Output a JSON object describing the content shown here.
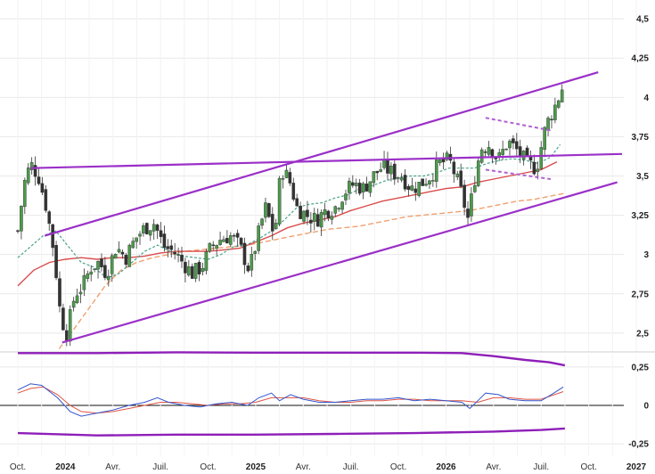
{
  "chart_data": {
    "type": "candlestick",
    "price_axis": {
      "ylim": [
        2.38,
        4.62
      ],
      "ticks": [
        "4,5",
        "4,25",
        "4",
        "3,75",
        "3,5",
        "3,25",
        "3",
        "2,75",
        "2,5"
      ],
      "tick_values": [
        4.5,
        4.25,
        4.0,
        3.75,
        3.5,
        3.25,
        3.0,
        2.75,
        2.5
      ]
    },
    "osc_axis": {
      "ylim": [
        -0.33,
        0.33
      ],
      "ticks": [
        "0,25",
        "0",
        "-0,25"
      ],
      "tick_values": [
        0.25,
        0.0,
        -0.25
      ]
    },
    "x_axis": {
      "labels": [
        "Oct.",
        "2024",
        "Avr.",
        "Juil.",
        "Oct.",
        "2025",
        "Avr.",
        "Juil.",
        "Oct.",
        "2026",
        "Avr.",
        "Juil.",
        "Oct.",
        "2027"
      ],
      "bold": [
        false,
        true,
        false,
        false,
        false,
        true,
        false,
        false,
        false,
        true,
        false,
        false,
        false,
        true
      ],
      "t": [
        0,
        3,
        6,
        9,
        12,
        15,
        18,
        21,
        24,
        27,
        30,
        33,
        36,
        39
      ]
    },
    "anchors": [
      [
        0,
        3.15
      ],
      [
        0.4,
        3.45
      ],
      [
        0.8,
        3.58
      ],
      [
        1.3,
        3.5
      ],
      [
        1.8,
        3.3
      ],
      [
        2.3,
        3.0
      ],
      [
        2.7,
        2.6
      ],
      [
        3.1,
        2.5
      ],
      [
        3.6,
        2.75
      ],
      [
        4.1,
        2.8
      ],
      [
        4.6,
        2.92
      ],
      [
        5.1,
        2.95
      ],
      [
        5.6,
        2.88
      ],
      [
        6.2,
        3.05
      ],
      [
        6.8,
        2.98
      ],
      [
        7.4,
        3.1
      ],
      [
        8.0,
        3.17
      ],
      [
        8.6,
        3.2
      ],
      [
        9.2,
        3.05
      ],
      [
        9.8,
        3.02
      ],
      [
        10.4,
        2.95
      ],
      [
        11.0,
        2.88
      ],
      [
        11.6,
        2.92
      ],
      [
        12.2,
        3.05
      ],
      [
        12.8,
        3.1
      ],
      [
        13.4,
        3.12
      ],
      [
        14.0,
        3.05
      ],
      [
        14.6,
        2.9
      ],
      [
        15.1,
        3.1
      ],
      [
        15.6,
        3.3
      ],
      [
        16.2,
        3.12
      ],
      [
        16.6,
        3.55
      ],
      [
        17.1,
        3.48
      ],
      [
        17.6,
        3.3
      ],
      [
        18.2,
        3.25
      ],
      [
        18.8,
        3.22
      ],
      [
        19.4,
        3.28
      ],
      [
        20.0,
        3.3
      ],
      [
        20.6,
        3.4
      ],
      [
        21.2,
        3.45
      ],
      [
        21.8,
        3.42
      ],
      [
        22.4,
        3.5
      ],
      [
        23.0,
        3.56
      ],
      [
        23.6,
        3.52
      ],
      [
        24.2,
        3.5
      ],
      [
        24.8,
        3.42
      ],
      [
        25.4,
        3.45
      ],
      [
        26.0,
        3.5
      ],
      [
        26.6,
        3.58
      ],
      [
        27.2,
        3.6
      ],
      [
        27.6,
        3.5
      ],
      [
        28.0,
        3.38
      ],
      [
        28.4,
        3.22
      ],
      [
        28.8,
        3.48
      ],
      [
        29.2,
        3.68
      ],
      [
        29.7,
        3.7
      ],
      [
        30.3,
        3.6
      ],
      [
        30.9,
        3.72
      ],
      [
        31.5,
        3.66
      ],
      [
        32.1,
        3.58
      ],
      [
        32.7,
        3.55
      ],
      [
        33.3,
        3.82
      ],
      [
        33.9,
        3.95
      ],
      [
        34.4,
        4.08
      ]
    ],
    "ma_green": [
      [
        0,
        2.98
      ],
      [
        0.8,
        3.05
      ],
      [
        1.6,
        3.12
      ],
      [
        2.4,
        3.15
      ],
      [
        3.2,
        3.05
      ],
      [
        4.0,
        2.95
      ],
      [
        4.8,
        2.92
      ],
      [
        5.6,
        2.85
      ],
      [
        6.4,
        2.88
      ],
      [
        7.2,
        2.95
      ],
      [
        8.0,
        3.02
      ],
      [
        8.8,
        3.06
      ],
      [
        9.6,
        3.02
      ],
      [
        10.4,
        2.99
      ],
      [
        11.2,
        2.98
      ],
      [
        12.0,
        2.97
      ],
      [
        12.8,
        3.0
      ],
      [
        13.6,
        3.05
      ],
      [
        14.4,
        3.06
      ],
      [
        15.2,
        3.1
      ],
      [
        16.0,
        3.15
      ],
      [
        16.8,
        3.22
      ],
      [
        17.6,
        3.3
      ],
      [
        18.4,
        3.32
      ],
      [
        19.2,
        3.33
      ],
      [
        20.0,
        3.36
      ],
      [
        20.8,
        3.38
      ],
      [
        21.6,
        3.42
      ],
      [
        22.4,
        3.44
      ],
      [
        23.2,
        3.47
      ],
      [
        24.0,
        3.49
      ],
      [
        24.8,
        3.5
      ],
      [
        25.6,
        3.5
      ],
      [
        26.4,
        3.52
      ],
      [
        27.2,
        3.55
      ],
      [
        28.0,
        3.55
      ],
      [
        28.8,
        3.55
      ],
      [
        29.6,
        3.58
      ],
      [
        30.4,
        3.6
      ],
      [
        31.2,
        3.61
      ],
      [
        32.0,
        3.6
      ],
      [
        32.8,
        3.58
      ],
      [
        33.6,
        3.62
      ],
      [
        34.2,
        3.7
      ]
    ],
    "ma_red": [
      [
        0,
        2.8
      ],
      [
        1.0,
        2.9
      ],
      [
        2.0,
        2.95
      ],
      [
        3.0,
        2.97
      ],
      [
        4.0,
        2.98
      ],
      [
        5.0,
        2.97
      ],
      [
        6.0,
        2.98
      ],
      [
        7.0,
        2.98
      ],
      [
        8.0,
        2.99
      ],
      [
        9.0,
        3.01
      ],
      [
        10.0,
        3.02
      ],
      [
        11.0,
        3.02
      ],
      [
        12.0,
        3.02
      ],
      [
        13.0,
        3.03
      ],
      [
        14.0,
        3.04
      ],
      [
        15.0,
        3.08
      ],
      [
        16.0,
        3.12
      ],
      [
        17.0,
        3.17
      ],
      [
        18.0,
        3.2
      ],
      [
        19.0,
        3.22
      ],
      [
        20.0,
        3.24
      ],
      [
        21.0,
        3.28
      ],
      [
        22.0,
        3.31
      ],
      [
        23.0,
        3.34
      ],
      [
        24.0,
        3.36
      ],
      [
        25.0,
        3.38
      ],
      [
        26.0,
        3.4
      ],
      [
        27.0,
        3.42
      ],
      [
        28.0,
        3.43
      ],
      [
        29.0,
        3.46
      ],
      [
        30.0,
        3.48
      ],
      [
        31.0,
        3.5
      ],
      [
        32.0,
        3.52
      ],
      [
        33.0,
        3.54
      ],
      [
        34.0,
        3.59
      ]
    ],
    "ma_orange": [
      [
        2.6,
        2.4
      ],
      [
        3.5,
        2.52
      ],
      [
        4.5,
        2.66
      ],
      [
        5.5,
        2.8
      ],
      [
        6.5,
        2.9
      ],
      [
        7.5,
        2.95
      ],
      [
        8.5,
        2.98
      ],
      [
        9.5,
        3.0
      ],
      [
        10.5,
        3.02
      ],
      [
        11.5,
        3.03
      ],
      [
        12.5,
        3.04
      ],
      [
        13.5,
        3.05
      ],
      [
        14.5,
        3.06
      ],
      [
        15.5,
        3.08
      ],
      [
        16.5,
        3.1
      ],
      [
        17.5,
        3.12
      ],
      [
        18.5,
        3.14
      ],
      [
        19.5,
        3.16
      ],
      [
        20.5,
        3.17
      ],
      [
        21.5,
        3.18
      ],
      [
        22.5,
        3.2
      ],
      [
        23.5,
        3.22
      ],
      [
        24.5,
        3.24
      ],
      [
        25.5,
        3.25
      ],
      [
        26.5,
        3.26
      ],
      [
        27.5,
        3.27
      ],
      [
        28.5,
        3.28
      ],
      [
        29.5,
        3.3
      ],
      [
        30.5,
        3.32
      ],
      [
        31.5,
        3.34
      ],
      [
        32.5,
        3.35
      ],
      [
        33.5,
        3.37
      ],
      [
        34.5,
        3.39
      ]
    ],
    "trendlines": [
      {
        "type": "channel-top",
        "p1": [
          1.7,
          3.12
        ],
        "p2": [
          36.6,
          4.16
        ]
      },
      {
        "type": "channel-bottom",
        "p1": [
          2.8,
          2.44
        ],
        "p2": [
          37.8,
          3.46
        ]
      },
      {
        "type": "horizontal",
        "p1": [
          0.8,
          3.55
        ],
        "p2": [
          38.1,
          3.64
        ]
      },
      {
        "type": "flag-top",
        "p1": [
          29.5,
          3.87
        ],
        "p2": [
          33.6,
          3.79
        ],
        "dashed": true
      },
      {
        "type": "flag-bottom",
        "p1": [
          29.5,
          3.54
        ],
        "p2": [
          33.6,
          3.48
        ],
        "dashed": true
      }
    ],
    "volume_line": [
      [
        0,
        0.34
      ],
      [
        5,
        0.34
      ],
      [
        10,
        0.345
      ],
      [
        15,
        0.343
      ],
      [
        20,
        0.343
      ],
      [
        25,
        0.343
      ],
      [
        28,
        0.34
      ],
      [
        30,
        0.32
      ],
      [
        32,
        0.295
      ],
      [
        33.5,
        0.28
      ],
      [
        34.5,
        0.26
      ]
    ],
    "osc_blue": [
      [
        0,
        0.1
      ],
      [
        0.8,
        0.14
      ],
      [
        1.5,
        0.13
      ],
      [
        2.5,
        0.05
      ],
      [
        3.3,
        -0.04
      ],
      [
        4.0,
        -0.07
      ],
      [
        5.0,
        -0.05
      ],
      [
        6.0,
        -0.03
      ],
      [
        7.0,
        0.0
      ],
      [
        8.0,
        0.02
      ],
      [
        8.8,
        0.05
      ],
      [
        9.5,
        0.02
      ],
      [
        10.5,
        0.0
      ],
      [
        11.5,
        -0.01
      ],
      [
        12.5,
        0.01
      ],
      [
        13.5,
        0.02
      ],
      [
        14.5,
        0.0
      ],
      [
        15.2,
        0.05
      ],
      [
        16.0,
        0.08
      ],
      [
        16.5,
        0.03
      ],
      [
        17.2,
        0.07
      ],
      [
        18.0,
        0.04
      ],
      [
        19.0,
        0.02
      ],
      [
        20.0,
        0.02
      ],
      [
        21.0,
        0.03
      ],
      [
        22.0,
        0.04
      ],
      [
        23.0,
        0.04
      ],
      [
        24.0,
        0.05
      ],
      [
        25.0,
        0.03
      ],
      [
        26.0,
        0.04
      ],
      [
        27.0,
        0.03
      ],
      [
        28.0,
        0.02
      ],
      [
        28.5,
        -0.02
      ],
      [
        29.0,
        0.03
      ],
      [
        29.5,
        0.08
      ],
      [
        30.3,
        0.07
      ],
      [
        31.0,
        0.04
      ],
      [
        32.0,
        0.03
      ],
      [
        33.0,
        0.03
      ],
      [
        33.8,
        0.08
      ],
      [
        34.4,
        0.12
      ]
    ],
    "osc_red": [
      [
        0,
        0.08
      ],
      [
        0.8,
        0.11
      ],
      [
        1.6,
        0.12
      ],
      [
        2.5,
        0.07
      ],
      [
        3.3,
        0.0
      ],
      [
        4.0,
        -0.04
      ],
      [
        5.0,
        -0.05
      ],
      [
        6.0,
        -0.04
      ],
      [
        7.0,
        -0.02
      ],
      [
        8.0,
        0.0
      ],
      [
        9.0,
        0.02
      ],
      [
        10.0,
        0.02
      ],
      [
        11.0,
        0.01
      ],
      [
        12.0,
        0.0
      ],
      [
        13.0,
        0.01
      ],
      [
        14.0,
        0.01
      ],
      [
        15.0,
        0.02
      ],
      [
        16.0,
        0.05
      ],
      [
        17.0,
        0.05
      ],
      [
        18.0,
        0.05
      ],
      [
        19.0,
        0.03
      ],
      [
        20.0,
        0.02
      ],
      [
        21.0,
        0.02
      ],
      [
        22.0,
        0.03
      ],
      [
        23.0,
        0.03
      ],
      [
        24.0,
        0.04
      ],
      [
        25.0,
        0.04
      ],
      [
        26.0,
        0.03
      ],
      [
        27.0,
        0.03
      ],
      [
        28.0,
        0.03
      ],
      [
        29.0,
        0.02
      ],
      [
        30.0,
        0.05
      ],
      [
        31.0,
        0.05
      ],
      [
        32.0,
        0.04
      ],
      [
        33.0,
        0.04
      ],
      [
        34.4,
        0.09
      ]
    ],
    "osc_purple_band": [
      [
        0,
        -0.18
      ],
      [
        5,
        -0.195
      ],
      [
        10,
        -0.19
      ],
      [
        15,
        -0.19
      ],
      [
        20,
        -0.185
      ],
      [
        25,
        -0.18
      ],
      [
        30,
        -0.17
      ],
      [
        33,
        -0.16
      ],
      [
        34.5,
        -0.15
      ]
    ],
    "colors": {
      "up_candle": "#4c9a4c",
      "down_candle": "#333333",
      "channel": "#9b30c8",
      "ma_green": "#4aa38a",
      "ma_red": "#d94c4c",
      "ma_orange": "#f0a070",
      "osc_blue": "#3355cc",
      "osc_red": "#dd5544",
      "grid": "#e8e8e8"
    }
  }
}
